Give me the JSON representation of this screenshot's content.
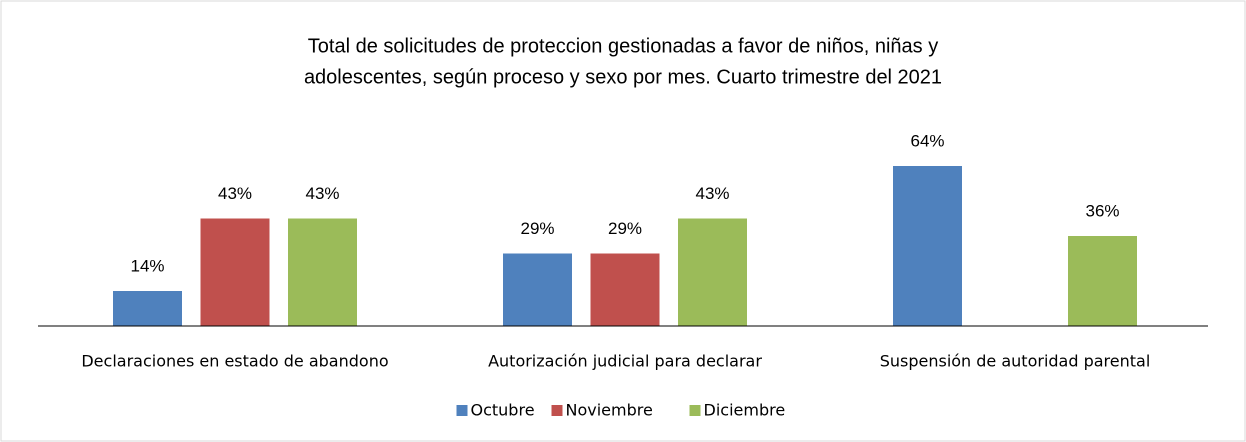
{
  "chart_data": {
    "type": "bar",
    "title": [
      "Total de solicitudes de proteccion gestionadas a  favor de niños, niñas y",
      "adolescentes, según  proceso y sexo por mes. Cuarto trimestre del 2021"
    ],
    "categories": [
      "Declaraciones en estado de abandono",
      "Autorización judicial para declarar",
      "Suspensión de autoridad parental"
    ],
    "series": [
      {
        "name": "Octubre",
        "color": "#4f81bd",
        "values": [
          14,
          29,
          64
        ],
        "value_labels": [
          "14%",
          "29%",
          "64%"
        ]
      },
      {
        "name": "Noviembre",
        "color": "#c0504d",
        "values": [
          43,
          29,
          null
        ],
        "value_labels": [
          "43%",
          "29%",
          null
        ]
      },
      {
        "name": "Diciembre",
        "color": "#9bbb59",
        "values": [
          43,
          43,
          36
        ],
        "value_labels": [
          "43%",
          "43%",
          "36%"
        ]
      }
    ],
    "legend": "bottom"
  }
}
